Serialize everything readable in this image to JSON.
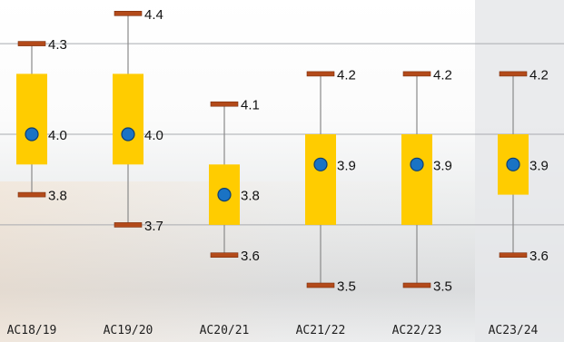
{
  "chart_data": {
    "type": "box",
    "categories": [
      "AC18/19",
      "AC19/20",
      "AC20/21",
      "AC21/22",
      "AC22/23",
      "AC23/24"
    ],
    "series": [
      {
        "max": 4.3,
        "q3": 4.2,
        "mean": 4.0,
        "q1": 3.9,
        "min": 3.8
      },
      {
        "max": 4.4,
        "q3": 4.2,
        "mean": 4.0,
        "q1": 3.9,
        "min": 3.7
      },
      {
        "max": 4.1,
        "q3": 3.9,
        "mean": 3.8,
        "q1": 3.7,
        "min": 3.6
      },
      {
        "max": 4.2,
        "q3": 4.0,
        "mean": 3.9,
        "q1": 3.7,
        "min": 3.5
      },
      {
        "max": 4.2,
        "q3": 4.0,
        "mean": 3.9,
        "q1": 3.7,
        "min": 3.5
      },
      {
        "max": 4.2,
        "q3": 4.0,
        "mean": 3.9,
        "q1": 3.8,
        "min": 3.6
      }
    ],
    "labels": [
      [
        "4.3",
        "4.0",
        "3.8"
      ],
      [
        "4.4",
        "4.0",
        "3.7"
      ],
      [
        "4.1",
        "3.8",
        "3.6"
      ],
      [
        "4.2",
        "3.9",
        "3.5"
      ],
      [
        "4.2",
        "3.9",
        "3.5"
      ],
      [
        "4.2",
        "3.9",
        "3.6"
      ]
    ],
    "ylim": [
      3.4,
      4.45
    ],
    "gridlines": [
      4.3,
      4.0,
      3.7
    ],
    "grid": true,
    "highlight_last_category": true,
    "colors": {
      "box": "#ffcc00",
      "whisker_cap": "#b34a1a",
      "mean_dot": "#1a73c4",
      "mean_dot_stroke": "#0d3f73",
      "whisker_line": "#8a8a8a",
      "grid": "#a9abb0"
    }
  }
}
